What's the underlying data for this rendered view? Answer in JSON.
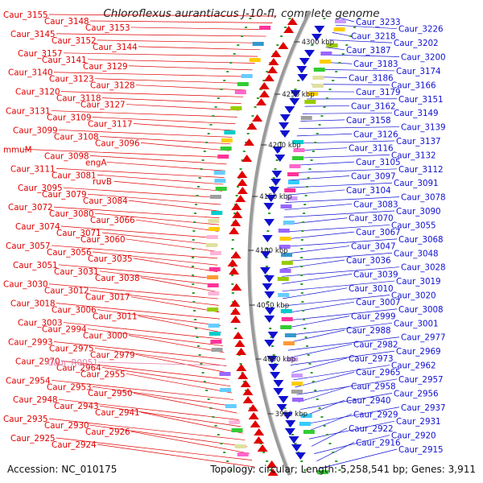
{
  "title": "Chloroflexus aurantiacus J-10-fl, complete genome",
  "footer": {
    "accession": "Accession: NC_010175",
    "summary": "Topology: circular; Length: 5,258,541 bp; Genes: 3,911"
  },
  "colors": {
    "forward": "#e00000",
    "reverse": "#1010d0",
    "rna": "#e07eaa",
    "backbone": "#9a9a9a",
    "tick": "#2f9e2f"
  },
  "ruler_ticks": [
    "4300 kbp",
    "4250 kbp",
    "4200 kbp",
    "4150 kbp",
    "4100 kbp",
    "4050 kbp",
    "4000 kbp",
    "3950 kbp"
  ],
  "forward_labels": [
    "Caur_3155",
    "Caur_3148",
    "Caur_3153",
    "Caur_3145",
    "Caur_3152",
    "Caur_3144",
    "Caur_3157",
    "Caur_3141",
    "Caur_3129",
    "Caur_3140",
    "Caur_3123",
    "Caur_3128",
    "Caur_3120",
    "Caur_3118",
    "Caur_3127",
    "Caur_3131",
    "Caur_3109",
    "Caur_3117",
    "Caur_3099",
    "Caur_3108",
    "Caur_3096",
    "mmuM",
    "Caur_3098",
    "engA",
    "Caur_3111",
    "Caur_3081",
    "ruvB",
    "Caur_3095",
    "Caur_3079",
    "Caur_3084",
    "Caur_3072",
    "Caur_3080",
    "Caur_3066",
    "Caur_3074",
    "Caur_3071",
    "Caur_3060",
    "Caur_3057",
    "Caur_3056",
    "Caur_3035",
    "Caur_3051",
    "Caur_3031",
    "Caur_3038",
    "Caur_3030",
    "Caur_3012",
    "Caur_3017",
    "Caur_3018",
    "Caur_3006",
    "Caur_3011",
    "Caur_3003",
    "Caur_2994",
    "Caur_3000",
    "Caur_2993",
    "Caur_2975",
    "Caur_2979",
    "Caur_2970",
    "Caur_2964",
    "Caur_2955",
    "Caur_2954",
    "Caur_2953",
    "Caur_2950",
    "Caur_2948",
    "Caur_2943",
    "Caur_2941",
    "Caur_2935",
    "Caur_2930",
    "Caur_2926",
    "Caur_2925",
    "Caur_2924"
  ],
  "rna_labels": [
    "Caur_R0051"
  ],
  "reverse_labels": [
    "Caur_3233",
    "Caur_3226",
    "Caur_3218",
    "Caur_3202",
    "Caur_3187",
    "Caur_3200",
    "Caur_3183",
    "Caur_3174",
    "Caur_3186",
    "Caur_3166",
    "Caur_3179",
    "Caur_3151",
    "Caur_3162",
    "Caur_3149",
    "Caur_3158",
    "Caur_3139",
    "Caur_3126",
    "Caur_3137",
    "Caur_3116",
    "Caur_3132",
    "Caur_3105",
    "Caur_3112",
    "Caur_3097",
    "Caur_3091",
    "Caur_3104",
    "Caur_3078",
    "Caur_3083",
    "Caur_3090",
    "Caur_3070",
    "Caur_3055",
    "Caur_3067",
    "Caur_3068",
    "Caur_3047",
    "Caur_3048",
    "Caur_3036",
    "Caur_3028",
    "Caur_3039",
    "Caur_3019",
    "Caur_3010",
    "Caur_3020",
    "Caur_3007",
    "Caur_3008",
    "Caur_2999",
    "Caur_3001",
    "Caur_2988",
    "Caur_2977",
    "Caur_2982",
    "Caur_2969",
    "Caur_2973",
    "Caur_2962",
    "Caur_2965",
    "Caur_2957",
    "Caur_2958",
    "Caur_2956",
    "Caur_2940",
    "Caur_2937",
    "Caur_2929",
    "Caur_2931",
    "Caur_2922",
    "Caur_2920",
    "Caur_2916",
    "Caur_2915"
  ]
}
